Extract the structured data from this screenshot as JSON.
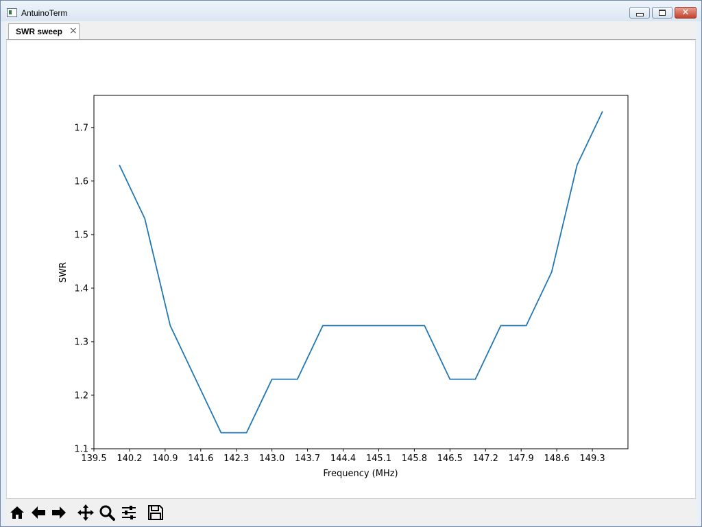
{
  "window": {
    "title": "AntuinoTerm",
    "close_glyph": "✕"
  },
  "tab": {
    "label": "SWR sweep",
    "close_glyph": "×"
  },
  "icons": {
    "app": "app-icon",
    "minimize": "minimize-icon",
    "maximize": "maximize-icon",
    "close": "close-icon",
    "toolbar": [
      "home-icon",
      "back-arrow-icon",
      "forward-arrow-icon",
      "pan-icon",
      "zoom-icon",
      "configure-subplots-icon",
      "save-icon"
    ]
  },
  "colors": {
    "line": "#1f77b4",
    "close_button": "#c4412c"
  },
  "chart_data": {
    "type": "line",
    "title": "",
    "xlabel": "Frequency (MHz)",
    "ylabel": "SWR",
    "xlim": [
      139.5,
      150.0
    ],
    "ylim": [
      1.1,
      1.76
    ],
    "xticks": [
      "139.5",
      "140.2",
      "140.9",
      "141.6",
      "142.3",
      "143.0",
      "143.7",
      "144.4",
      "145.1",
      "145.8",
      "146.5",
      "147.2",
      "147.9",
      "148.6",
      "149.3"
    ],
    "yticks": [
      "1.1",
      "1.2",
      "1.3",
      "1.4",
      "1.5",
      "1.6",
      "1.7"
    ],
    "grid": false,
    "series": [
      {
        "x": [
          140.0,
          140.5,
          141.0,
          141.5,
          142.0,
          142.5,
          143.0,
          143.5,
          144.0,
          144.5,
          145.0,
          145.5,
          146.0,
          146.5,
          147.0,
          147.5,
          148.0,
          148.5,
          149.0,
          149.5
        ],
        "y": [
          1.63,
          1.53,
          1.33,
          1.23,
          1.13,
          1.13,
          1.23,
          1.23,
          1.33,
          1.33,
          1.33,
          1.33,
          1.33,
          1.23,
          1.23,
          1.33,
          1.33,
          1.43,
          1.63,
          1.73
        ]
      }
    ]
  }
}
